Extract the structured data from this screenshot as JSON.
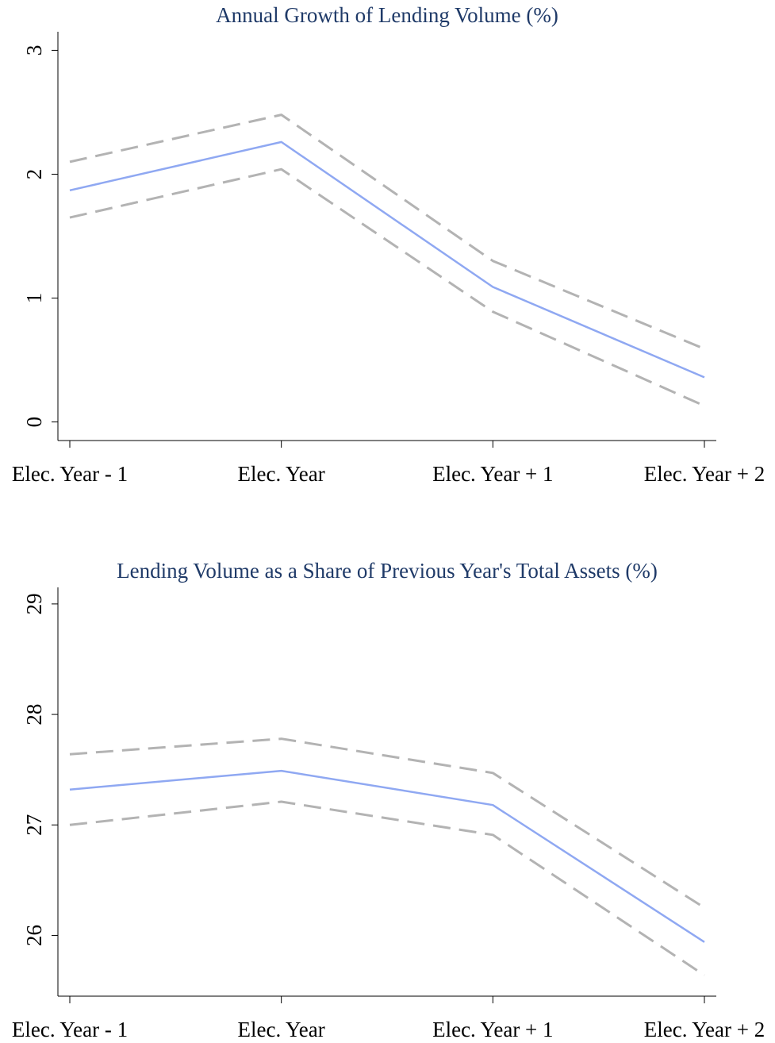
{
  "colors": {
    "title": "#1f3a68",
    "estimate": "#8fa8f2",
    "ci": "#b3b3b3",
    "axis": "#000000"
  },
  "chart_data": [
    {
      "type": "line",
      "title": "Annual Growth of Lending Volume (%)",
      "xlabel": "",
      "ylabel": "",
      "categories": [
        "Elec. Year - 1",
        "Elec. Year",
        "Elec. Year + 1",
        "Elec. Year + 2"
      ],
      "ylim": [
        -0.15,
        3.15
      ],
      "yticks": [
        0,
        1,
        2,
        3
      ],
      "grid": false,
      "legend": "none",
      "series": [
        {
          "role": "estimate",
          "style": "solid",
          "values": [
            1.87,
            2.26,
            1.09,
            0.36
          ]
        },
        {
          "role": "upper-bound",
          "style": "dashed",
          "values": [
            2.1,
            2.48,
            1.3,
            0.59
          ]
        },
        {
          "role": "lower-bound",
          "style": "dashed",
          "values": [
            1.65,
            2.04,
            0.89,
            0.13
          ]
        }
      ]
    },
    {
      "type": "line",
      "title": "Lending Volume as a Share of Previous Year's Total Assets (%)",
      "xlabel": "",
      "ylabel": "",
      "categories": [
        "Elec. Year - 1",
        "Elec. Year",
        "Elec. Year + 1",
        "Elec. Year + 2"
      ],
      "ylim": [
        25.45,
        29.15
      ],
      "yticks": [
        26,
        27,
        28,
        29
      ],
      "grid": false,
      "legend": "none",
      "series": [
        {
          "role": "estimate",
          "style": "solid",
          "values": [
            27.32,
            27.49,
            27.18,
            25.94
          ]
        },
        {
          "role": "upper-bound",
          "style": "dashed",
          "values": [
            27.64,
            27.78,
            27.47,
            26.25
          ]
        },
        {
          "role": "lower-bound",
          "style": "dashed",
          "values": [
            27.0,
            27.21,
            26.91,
            25.64
          ]
        }
      ]
    }
  ]
}
